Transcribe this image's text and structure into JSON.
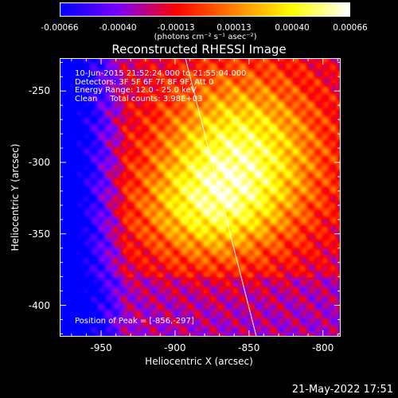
{
  "colorbar": {
    "ticks": [
      "-0.00066",
      "-0.00040",
      "-0.00013",
      "0.00013",
      "0.00040",
      "0.00066"
    ],
    "units": "(photons cm⁻² s⁻¹ asec⁻²)",
    "colormap": [
      "#0000ff",
      "#7b00ff",
      "#ff0000",
      "#ff8000",
      "#ffff00",
      "#ffffff"
    ]
  },
  "title": "Reconstructed RHESSI Image",
  "info_lines": [
    "10-Jun-2015 21:52:24.000 to 21:55:04.000",
    "Detectors: 3F 5F 6F 7F 8F 9F, Att 0",
    "Energy Range: 12.0 - 25.0 keV",
    "Clean     Total counts: 3.98E+03"
  ],
  "peak_text": "Position of Peak = [-856,-297]",
  "footer": "21-May-2022 17:51",
  "chart_data": {
    "type": "heatmap",
    "title": "Reconstructed RHESSI Image",
    "xlabel": "Heliocentric X (arcsec)",
    "ylabel": "Heliocentric Y (arcsec)",
    "xlim": [
      -978,
      -788
    ],
    "ylim": [
      -422,
      -227
    ],
    "x_ticks": [
      "-950",
      "-900",
      "-850",
      "-800"
    ],
    "x_tick_values": [
      -950,
      -900,
      -850,
      -800
    ],
    "y_ticks": [
      "-250",
      "-300",
      "-350",
      "-400"
    ],
    "y_tick_values": [
      -250,
      -300,
      -350,
      -400
    ],
    "peak": [
      -856,
      -297
    ],
    "colorbar_range": [
      -0.00066,
      0.00066
    ],
    "limb_line": [
      [
        -893,
        -227
      ],
      [
        -845,
        -422
      ]
    ]
  }
}
